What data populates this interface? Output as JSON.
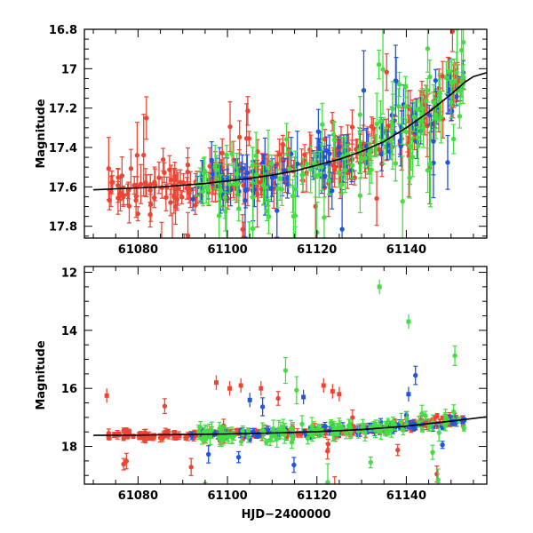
{
  "figure": {
    "xlabel": "HJD−2400000"
  },
  "colors": {
    "red": "#ee4433",
    "blue": "#2255dd",
    "green": "#44dd44",
    "fit": "#000000"
  },
  "chart_data": [
    {
      "id": "top",
      "type": "scatter",
      "title": "",
      "xlabel": "",
      "ylabel": "Magnitude",
      "xlim": [
        61068,
        61158
      ],
      "ylim": [
        17.86,
        16.8
      ],
      "y_inverted": true,
      "xticks_major": [
        61080,
        61100,
        61120,
        61140
      ],
      "xticks_minor_step": 5,
      "yticks_major": [
        16.8,
        17.0,
        17.2,
        17.4,
        17.6,
        17.8
      ],
      "ytick_labels": [
        "16.8",
        "17",
        "17.2",
        "17.4",
        "17.6",
        "17.8"
      ],
      "yticks_minor_step": 0.05,
      "fit_curve": {
        "x": [
          61070,
          61075,
          61080,
          61085,
          61090,
          61095,
          61100,
          61105,
          61110,
          61115,
          61120,
          61125,
          61130,
          61135,
          61140,
          61145,
          61150,
          61153,
          61155,
          61158
        ],
        "y": [
          17.615,
          17.61,
          17.605,
          17.6,
          17.592,
          17.583,
          17.57,
          17.557,
          17.54,
          17.52,
          17.49,
          17.46,
          17.42,
          17.37,
          17.3,
          17.22,
          17.13,
          17.07,
          17.04,
          17.02
        ]
      },
      "series": [
        {
          "name": "red",
          "color_key": "red",
          "x_range": [
            61073,
            61153
          ],
          "count": 260,
          "scatter": 0.06,
          "err": [
            0.03,
            0.1
          ],
          "outlier_frac": 0.1
        },
        {
          "name": "blue",
          "color_key": "blue",
          "x_range": [
            61092,
            61153
          ],
          "count": 110,
          "scatter": 0.06,
          "err": [
            0.04,
            0.1
          ],
          "outlier_frac": 0.12
        },
        {
          "name": "green",
          "color_key": "green",
          "x_range": [
            61093,
            61153
          ],
          "count": 130,
          "scatter": 0.1,
          "err": [
            0.04,
            0.12
          ],
          "outlier_frac": 0.18
        }
      ]
    },
    {
      "id": "bottom",
      "type": "scatter",
      "title": "",
      "xlabel": "HJD−2400000",
      "ylabel": "Magnitude",
      "xlim": [
        61068,
        61158
      ],
      "ylim": [
        19.3,
        11.8
      ],
      "y_inverted": true,
      "xticks_major": [
        61080,
        61100,
        61120,
        61140
      ],
      "xticks_minor_step": 5,
      "yticks_major": [
        12,
        14,
        16,
        18
      ],
      "ytick_labels": [
        "12",
        "14",
        "16",
        "18"
      ],
      "yticks_minor_step": 0.5,
      "fit_curve": {
        "x": [
          61070,
          61080,
          61090,
          61100,
          61110,
          61120,
          61130,
          61140,
          61150,
          61158
        ],
        "y": [
          17.62,
          17.61,
          17.59,
          17.57,
          17.54,
          17.49,
          17.42,
          17.3,
          17.13,
          16.98
        ]
      },
      "series": [
        {
          "name": "red",
          "color_key": "red",
          "x_range": [
            61073,
            61153
          ],
          "count": 260,
          "scatter": 0.08,
          "err": [
            0.05,
            0.15
          ],
          "outlier_frac": 0.06
        },
        {
          "name": "blue",
          "color_key": "blue",
          "x_range": [
            61092,
            61153
          ],
          "count": 110,
          "scatter": 0.08,
          "err": [
            0.05,
            0.15
          ],
          "outlier_frac": 0.05
        },
        {
          "name": "green",
          "color_key": "green",
          "x_range": [
            61093,
            61153
          ],
          "count": 130,
          "scatter": 0.15,
          "err": [
            0.08,
            0.3
          ],
          "outlier_frac": 0.08
        }
      ],
      "annotations": [
        {
          "x": 61097.5,
          "y": 15.8,
          "color_key": "red"
        },
        {
          "x": 61100.5,
          "y": 16.0,
          "color_key": "red"
        },
        {
          "x": 61103.0,
          "y": 15.9,
          "color_key": "red"
        },
        {
          "x": 61107.5,
          "y": 16.0,
          "color_key": "red"
        },
        {
          "x": 61121.5,
          "y": 15.9,
          "color_key": "red"
        },
        {
          "x": 61123.5,
          "y": 16.1,
          "color_key": "red"
        },
        {
          "x": 61125.0,
          "y": 16.2,
          "color_key": "red"
        },
        {
          "x": 61073.0,
          "y": 16.25,
          "color_key": "red"
        },
        {
          "x": 61134.0,
          "y": 12.5,
          "color_key": "green"
        },
        {
          "x": 61140.5,
          "y": 13.7,
          "color_key": "green"
        },
        {
          "x": 61140.5,
          "y": 16.2,
          "color_key": "blue"
        },
        {
          "x": 61105.0,
          "y": 16.4,
          "color_key": "blue"
        },
        {
          "x": 61117.0,
          "y": 16.3,
          "color_key": "blue"
        }
      ]
    }
  ]
}
